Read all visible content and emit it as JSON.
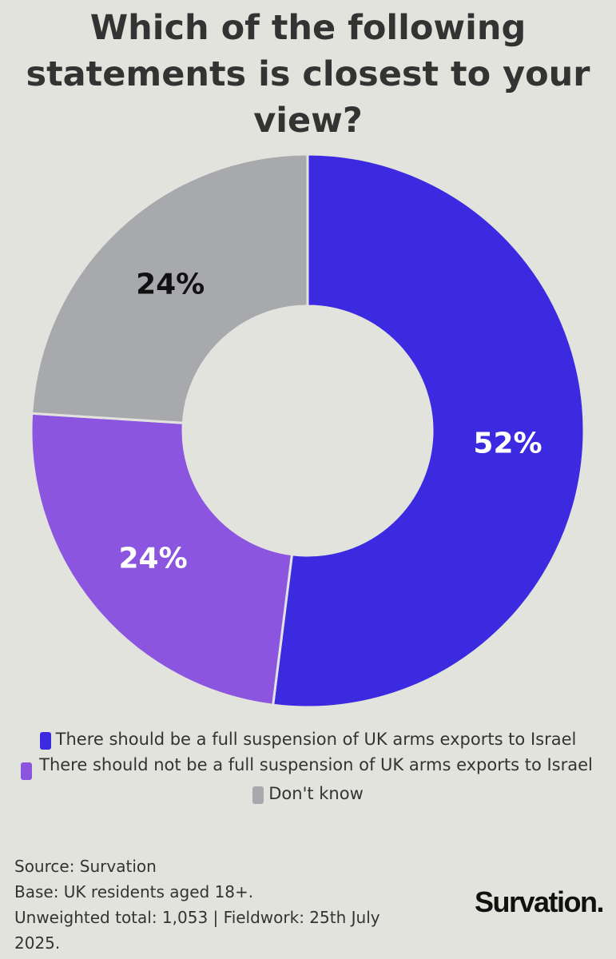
{
  "title": "Which of the following statements is closest to your view?",
  "chart_data": {
    "type": "pie",
    "donut": true,
    "title": "Which of the following statements is closest to your view?",
    "slices": [
      {
        "label": "There should be a full suspension of UK arms exports to Israel",
        "value": 52,
        "display": "52%",
        "color": "#3c2ae0",
        "label_color": "#ffffff"
      },
      {
        "label": "There should not be a full suspension of UK arms exports to Israel",
        "value": 24,
        "display": "24%",
        "color": "#8c55e0",
        "label_color": "#ffffff"
      },
      {
        "label": "Don't know",
        "value": 24,
        "display": "24%",
        "color": "#a7a9ad",
        "label_color": "#111111"
      }
    ],
    "legend_position": "bottom"
  },
  "legend": [
    {
      "label": "There should be a full suspension of UK arms exports to Israel",
      "color": "#3c2ae0"
    },
    {
      "label": "There should not be a full suspension of UK arms exports to Israel",
      "color": "#8c55e0"
    },
    {
      "label": "Don't know",
      "color": "#a7a9ad"
    }
  ],
  "footer": {
    "source": "Source: Survation",
    "base": "Base: UK residents aged 18+.",
    "totals": "Unweighted total: 1,053 | Fieldwork: 25th July 2025."
  },
  "brand": "Survation."
}
